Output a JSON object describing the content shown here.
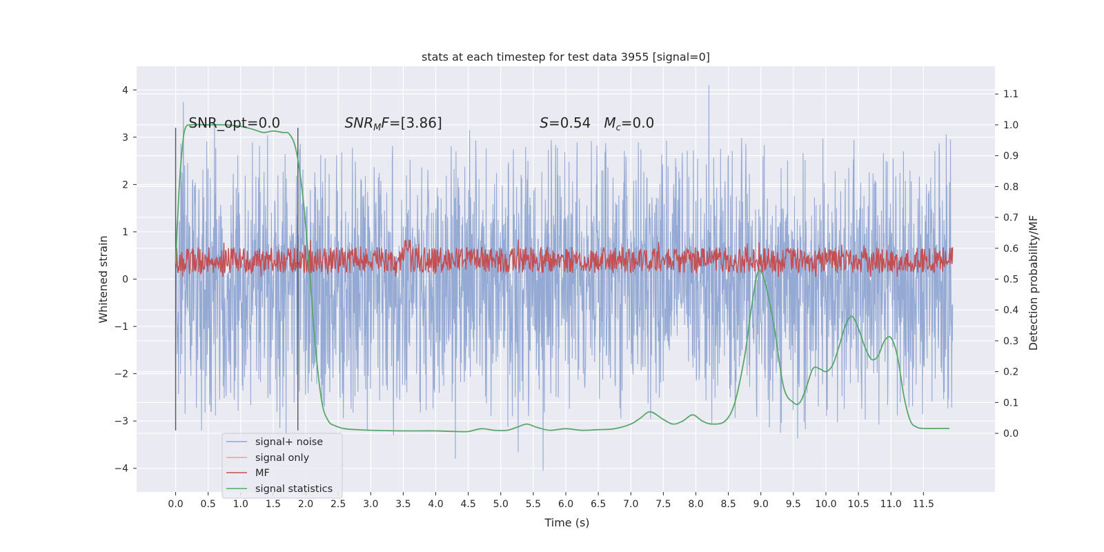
{
  "chart_data": {
    "type": "line",
    "title": "stats at each timestep for test data 3955 [signal=0]",
    "xlabel": "Time (s)",
    "ylabel_left": "Whitened strain",
    "ylabel_right": "Detection probability/MF",
    "xlim": [
      -0.6,
      12.6
    ],
    "ylim_left": [
      -4.5,
      4.5
    ],
    "ylim_right": [
      -0.19,
      1.19
    ],
    "x_ticks": [
      0.0,
      0.5,
      1.0,
      1.5,
      2.0,
      2.5,
      3.0,
      3.5,
      4.0,
      4.5,
      5.0,
      5.5,
      6.0,
      6.5,
      7.0,
      7.5,
      8.0,
      8.5,
      9.0,
      9.5,
      10.0,
      10.5,
      11.0,
      11.5
    ],
    "x_tick_labels": [
      "0.0",
      "0.5",
      "1.0",
      "1.5",
      "2.0",
      "2.5",
      "3.0",
      "3.5",
      "4.0",
      "4.5",
      "5.0",
      "5.5",
      "6.0",
      "6.5",
      "7.0",
      "7.5",
      "8.0",
      "8.5",
      "9.0",
      "9.5",
      "10.0",
      "10.5",
      "11.0",
      "11.5"
    ],
    "y_left_ticks": [
      -4,
      -3,
      -2,
      -1,
      0,
      1,
      2,
      3,
      4
    ],
    "y_left_tick_labels": [
      "−4",
      "−3",
      "−2",
      "−1",
      "0",
      "1",
      "2",
      "3",
      "4"
    ],
    "y_right_ticks": [
      0.0,
      0.1,
      0.2,
      0.3,
      0.4,
      0.5,
      0.6,
      0.7,
      0.8,
      0.9,
      1.0,
      1.1
    ],
    "y_right_tick_labels": [
      "0.0",
      "0.1",
      "0.2",
      "0.3",
      "0.4",
      "0.5",
      "0.6",
      "0.7",
      "0.8",
      "0.9",
      "1.0",
      "1.1"
    ],
    "grid": true,
    "legend_position": "lower-left",
    "annotations": [
      {
        "text": "SNR_opt=0.0",
        "x": 0.2,
        "y": 3.2
      },
      {
        "text_parts": [
          "SNR",
          "M",
          "F=[3.86]"
        ],
        "x": 2.6,
        "y": 3.2
      },
      {
        "text_parts": [
          "S",
          "=0.54   ",
          "M",
          "c",
          "=0.0"
        ],
        "x": 5.6,
        "y": 3.2
      }
    ],
    "vertical_lines": [
      {
        "x": 0.0,
        "ymin": -3.2,
        "ymax": 3.2
      },
      {
        "x": 1.88,
        "ymin": -3.2,
        "ymax": 3.2
      }
    ],
    "series": [
      {
        "name": "signal+ noise",
        "color": "#8fa5d1",
        "axis": "left",
        "x_range": [
          0.0,
          11.95
        ],
        "typical_range": [
          -2.0,
          2.0
        ],
        "peak_values": [
          [
            0.12,
            3.75
          ],
          [
            8.2,
            4.1
          ],
          [
            5.65,
            -4.05
          ],
          [
            4.3,
            -3.8
          ],
          [
            3.35,
            -3.3
          ],
          [
            9.3,
            -3.25
          ],
          [
            0.4,
            -3.2
          ],
          [
            1.7,
            -3.3
          ]
        ]
      },
      {
        "name": "signal only",
        "color": "#e8a58c",
        "axis": "left",
        "values": []
      },
      {
        "name": "MF",
        "color": "#c44e52",
        "axis": "left",
        "x_range": [
          0.0,
          11.95
        ],
        "typical_range": [
          0.05,
          0.8
        ],
        "peak_values": [
          [
            1.8,
            0.85
          ],
          [
            9.1,
            0.1
          ],
          [
            7.35,
            1.0
          ],
          [
            10.4,
            0.98
          ]
        ]
      },
      {
        "name": "signal statistics",
        "color": "#55a868",
        "axis": "right",
        "x": [
          0.0,
          0.05,
          0.1,
          0.15,
          0.25,
          0.5,
          0.75,
          1.0,
          1.2,
          1.35,
          1.5,
          1.65,
          1.75,
          1.85,
          1.95,
          2.05,
          2.15,
          2.25,
          2.35,
          2.45,
          2.6,
          2.8,
          3.0,
          3.5,
          4.0,
          4.3,
          4.5,
          4.7,
          4.9,
          5.1,
          5.25,
          5.4,
          5.55,
          5.75,
          6.0,
          6.25,
          6.5,
          6.75,
          7.0,
          7.15,
          7.3,
          7.5,
          7.65,
          7.8,
          7.95,
          8.1,
          8.25,
          8.45,
          8.6,
          8.75,
          8.85,
          8.95,
          9.05,
          9.2,
          9.35,
          9.5,
          9.6,
          9.7,
          9.8,
          9.9,
          10.0,
          10.1,
          10.2,
          10.3,
          10.4,
          10.5,
          10.6,
          10.7,
          10.8,
          10.9,
          11.0,
          11.1,
          11.2,
          11.3,
          11.4,
          11.5,
          11.7,
          11.9
        ],
        "values": [
          0.55,
          0.78,
          0.92,
          0.99,
          1.0,
          1.0,
          1.0,
          0.995,
          0.985,
          0.975,
          0.98,
          0.975,
          0.97,
          0.92,
          0.78,
          0.55,
          0.28,
          0.1,
          0.04,
          0.025,
          0.015,
          0.012,
          0.01,
          0.008,
          0.008,
          0.006,
          0.006,
          0.015,
          0.01,
          0.01,
          0.02,
          0.03,
          0.02,
          0.01,
          0.015,
          0.01,
          0.012,
          0.015,
          0.03,
          0.05,
          0.07,
          0.045,
          0.03,
          0.04,
          0.06,
          0.04,
          0.03,
          0.04,
          0.1,
          0.25,
          0.4,
          0.52,
          0.5,
          0.35,
          0.15,
          0.1,
          0.1,
          0.15,
          0.21,
          0.21,
          0.2,
          0.22,
          0.28,
          0.35,
          0.38,
          0.34,
          0.28,
          0.24,
          0.25,
          0.3,
          0.31,
          0.25,
          0.12,
          0.04,
          0.02,
          0.016,
          0.016,
          0.016
        ]
      }
    ]
  }
}
